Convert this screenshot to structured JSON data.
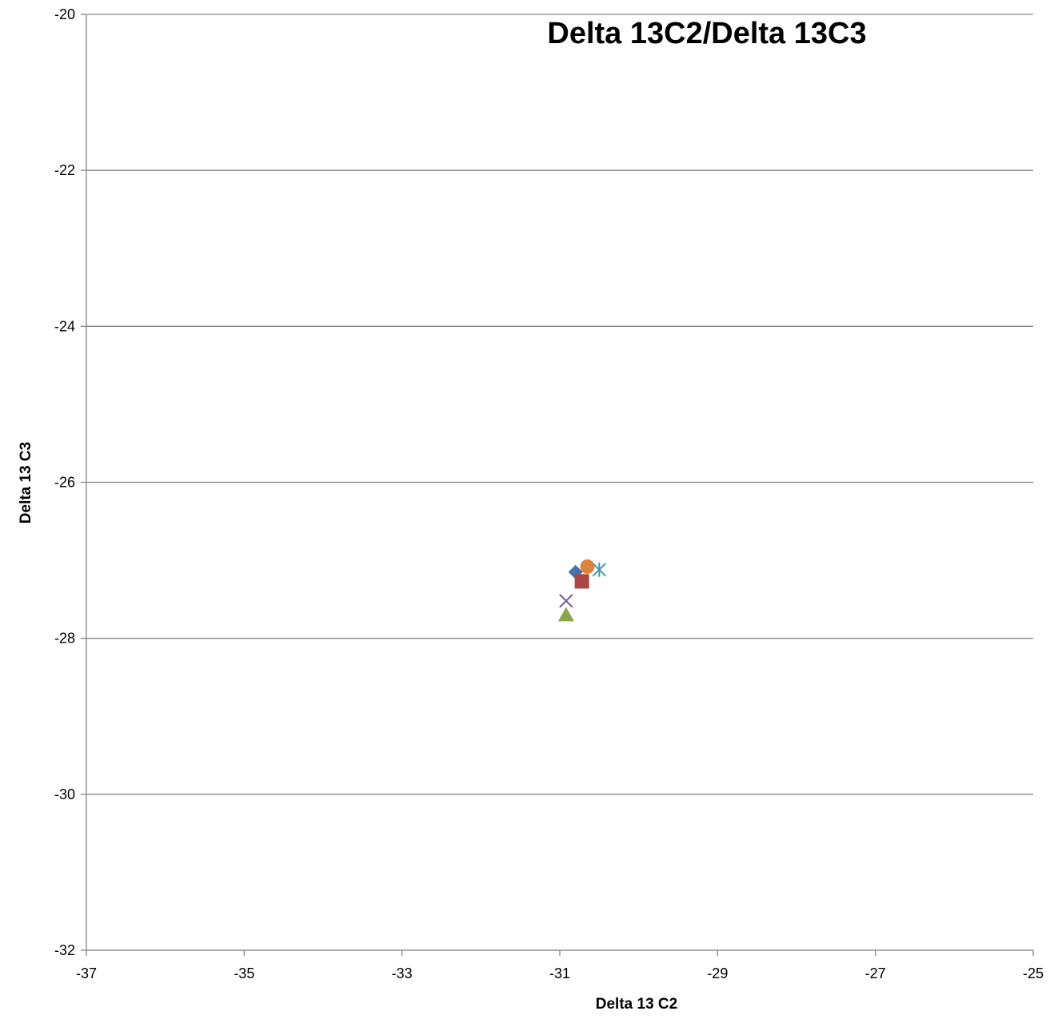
{
  "chart_data": {
    "type": "scatter",
    "title": "Delta 13C2/Delta 13C3",
    "xlabel": "Delta 13 C2",
    "ylabel": "Delta 13 C3",
    "xlim": [
      -37,
      -25
    ],
    "ylim": [
      -32,
      -20
    ],
    "xticks": [
      -37,
      -35,
      -33,
      -31,
      -29,
      -27,
      -25
    ],
    "yticks": [
      -32,
      -30,
      -28,
      -26,
      -24,
      -22,
      -20
    ],
    "xtick_labels": [
      "-37",
      "-35",
      "-33",
      "-31",
      "-29",
      "-27",
      "-25"
    ],
    "ytick_labels": [
      "-32",
      "-30",
      "-28",
      "-26",
      "-24",
      "-22",
      "-20"
    ],
    "grid": "horizontal",
    "legend": "none",
    "series": [
      {
        "marker": "diamond",
        "color": "#4572A7",
        "points": [
          {
            "x": -30.8,
            "y": -27.15
          }
        ]
      },
      {
        "marker": "square",
        "color": "#AA4643",
        "points": [
          {
            "x": -30.72,
            "y": -27.27
          }
        ]
      },
      {
        "marker": "triangle",
        "color": "#89A54E",
        "points": [
          {
            "x": -30.92,
            "y": -27.7
          }
        ]
      },
      {
        "marker": "x",
        "color": "#71588F",
        "points": [
          {
            "x": -30.92,
            "y": -27.52
          }
        ]
      },
      {
        "marker": "star",
        "color": "#4198AF",
        "points": [
          {
            "x": -30.5,
            "y": -27.12
          }
        ]
      },
      {
        "marker": "circle",
        "color": "#DB843D",
        "points": [
          {
            "x": -30.65,
            "y": -27.08
          }
        ]
      }
    ]
  }
}
